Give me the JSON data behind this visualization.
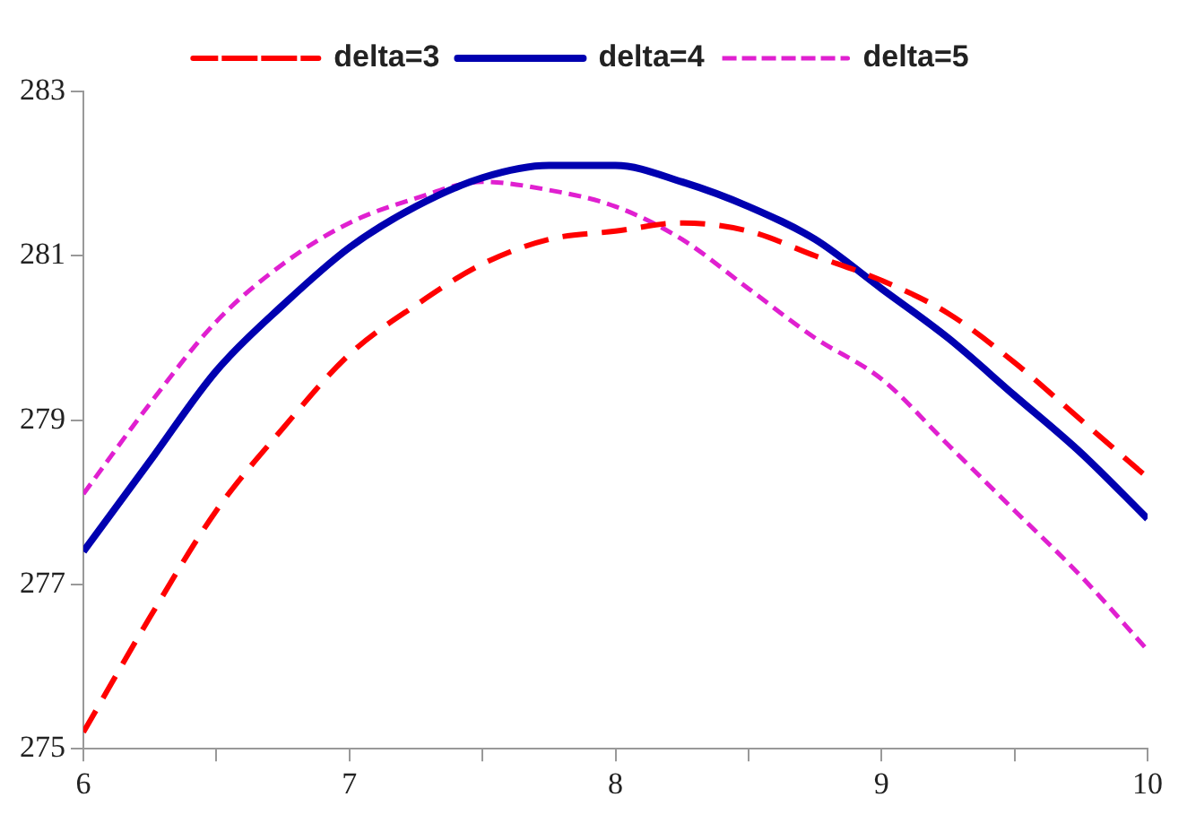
{
  "chart_data": {
    "type": "line",
    "x": [
      6,
      6.25,
      6.5,
      6.75,
      7,
      7.25,
      7.5,
      7.75,
      8,
      8.25,
      8.5,
      8.75,
      9,
      9.25,
      9.5,
      9.75,
      10
    ],
    "series": [
      {
        "name": "delta=3",
        "color": "#ff0000",
        "line_style": "dashed",
        "values": [
          275.2,
          276.6,
          277.9,
          278.9,
          279.8,
          280.4,
          280.9,
          281.2,
          281.3,
          281.4,
          281.3,
          281.0,
          280.7,
          280.3,
          279.7,
          279.0,
          278.3
        ]
      },
      {
        "name": "delta=4",
        "color": "#0000b0",
        "line_style": "solid",
        "values": [
          277.4,
          278.5,
          279.6,
          280.4,
          281.1,
          281.6,
          281.95,
          282.1,
          282.1,
          281.9,
          281.6,
          281.2,
          280.6,
          280.0,
          279.3,
          278.6,
          277.8
        ]
      },
      {
        "name": "delta=5",
        "color": "#e020d0",
        "line_style": "dotted",
        "values": [
          278.1,
          279.2,
          280.2,
          280.9,
          281.4,
          281.7,
          281.9,
          281.8,
          281.6,
          281.2,
          280.6,
          280.0,
          279.5,
          278.7,
          277.9,
          277.1,
          276.2
        ]
      }
    ],
    "xlim": [
      6,
      10
    ],
    "xticks": [
      6,
      {
        "value": 6.5,
        "label": null
      },
      7,
      {
        "value": 7.5,
        "label": null
      },
      8,
      {
        "value": 8.5,
        "label": null
      },
      9,
      {
        "value": 9.5,
        "label": null
      },
      10
    ],
    "ylim": [
      275,
      283
    ],
    "yticks": [
      275,
      277,
      279,
      281,
      283
    ],
    "grid": false,
    "legend": "top",
    "marker": "none"
  }
}
